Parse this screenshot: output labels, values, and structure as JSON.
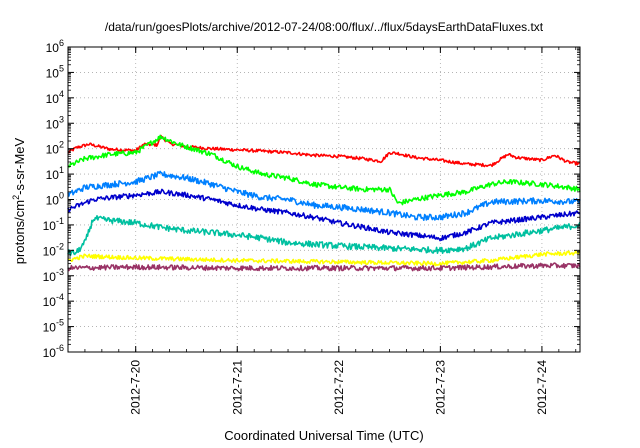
{
  "chart_data": {
    "type": "line",
    "title": "/data/run/goesPlots/archive/2012-07-24/08:00/flux/../flux/5daysEarthDataFluxes.txt",
    "xlabel": "Coordinated Universal Time (UTC)",
    "ylabel": "protons/cm2-s-sr-MeV",
    "ylabel_parts": {
      "base": "protons/cm",
      "sup": "2",
      "rest": "-s-sr-MeV"
    },
    "yscale": "log",
    "ylim": [
      1e-06,
      1000000.0
    ],
    "y_ticks": [
      {
        "base": "10",
        "exp": "-6"
      },
      {
        "base": "10",
        "exp": "-5"
      },
      {
        "base": "10",
        "exp": "-4"
      },
      {
        "base": "10",
        "exp": "-3"
      },
      {
        "base": "10",
        "exp": "-2"
      },
      {
        "base": "10",
        "exp": "-1"
      },
      {
        "base": "10",
        "exp": "0"
      },
      {
        "base": "10",
        "exp": "1"
      },
      {
        "base": "10",
        "exp": "2"
      },
      {
        "base": "10",
        "exp": "3"
      },
      {
        "base": "10",
        "exp": "4"
      },
      {
        "base": "10",
        "exp": "5"
      },
      {
        "base": "10",
        "exp": "6"
      }
    ],
    "xlim": [
      "2012-07-19 08:00",
      "2012-07-24 09:00"
    ],
    "x_ticks": [
      "2012-7-20",
      "2012-7-21",
      "2012-7-22",
      "2012-7-23",
      "2012-7-24"
    ],
    "grid": true,
    "series": [
      {
        "color": "#ff0000",
        "points": [
          [
            "2012-07-19 08:00",
            70
          ],
          [
            "2012-07-19 10:00",
            110
          ],
          [
            "2012-07-19 13:00",
            150
          ],
          [
            "2012-07-19 18:00",
            95
          ],
          [
            "2012-07-20 00:00",
            85
          ],
          [
            "2012-07-20 02:00",
            150
          ],
          [
            "2012-07-20 05:00",
            140
          ],
          [
            "2012-07-20 06:00",
            300
          ],
          [
            "2012-07-20 08:00",
            160
          ],
          [
            "2012-07-20 12:00",
            120
          ],
          [
            "2012-07-20 18:00",
            100
          ],
          [
            "2012-07-21 00:00",
            90
          ],
          [
            "2012-07-21 06:00",
            80
          ],
          [
            "2012-07-21 12:00",
            70
          ],
          [
            "2012-07-21 18:00",
            55
          ],
          [
            "2012-07-22 00:00",
            50
          ],
          [
            "2012-07-22 06:00",
            40
          ],
          [
            "2012-07-22 10:00",
            32
          ],
          [
            "2012-07-22 12:00",
            70
          ],
          [
            "2012-07-22 14:00",
            65
          ],
          [
            "2012-07-22 18:00",
            45
          ],
          [
            "2012-07-23 00:00",
            35
          ],
          [
            "2012-07-23 06:00",
            25
          ],
          [
            "2012-07-23 12:00",
            22
          ],
          [
            "2012-07-23 16:00",
            60
          ],
          [
            "2012-07-23 18:00",
            45
          ],
          [
            "2012-07-24 00:00",
            35
          ],
          [
            "2012-07-24 03:00",
            55
          ],
          [
            "2012-07-24 06:00",
            30
          ],
          [
            "2012-07-24 09:00",
            25
          ]
        ]
      },
      {
        "color": "#00ff00",
        "points": [
          [
            "2012-07-19 08:00",
            20
          ],
          [
            "2012-07-19 12:00",
            40
          ],
          [
            "2012-07-19 18:00",
            60
          ],
          [
            "2012-07-20 00:00",
            70
          ],
          [
            "2012-07-20 06:00",
            300
          ],
          [
            "2012-07-20 10:00",
            150
          ],
          [
            "2012-07-20 18:00",
            60
          ],
          [
            "2012-07-21 00:00",
            20
          ],
          [
            "2012-07-21 06:00",
            10
          ],
          [
            "2012-07-21 12:00",
            7
          ],
          [
            "2012-07-21 18:00",
            4
          ],
          [
            "2012-07-22 00:00",
            3
          ],
          [
            "2012-07-22 06:00",
            2.5
          ],
          [
            "2012-07-22 12:00",
            2.5
          ],
          [
            "2012-07-22 14:00",
            0.7
          ],
          [
            "2012-07-22 18:00",
            1.0
          ],
          [
            "2012-07-23 00:00",
            1.5
          ],
          [
            "2012-07-23 06:00",
            2
          ],
          [
            "2012-07-23 12:00",
            4
          ],
          [
            "2012-07-23 16:00",
            5
          ],
          [
            "2012-07-24 00:00",
            4
          ],
          [
            "2012-07-24 06:00",
            3
          ],
          [
            "2012-07-24 09:00",
            2.5
          ]
        ]
      },
      {
        "color": "#0080ff",
        "points": [
          [
            "2012-07-19 08:00",
            1.5
          ],
          [
            "2012-07-19 12:00",
            3
          ],
          [
            "2012-07-20 00:00",
            5
          ],
          [
            "2012-07-20 06:00",
            10
          ],
          [
            "2012-07-20 12:00",
            7
          ],
          [
            "2012-07-20 18:00",
            4
          ],
          [
            "2012-07-21 00:00",
            2
          ],
          [
            "2012-07-21 06:00",
            1.2
          ],
          [
            "2012-07-21 12:00",
            1.0
          ],
          [
            "2012-07-21 18:00",
            0.6
          ],
          [
            "2012-07-22 00:00",
            0.5
          ],
          [
            "2012-07-22 06:00",
            0.4
          ],
          [
            "2012-07-22 12:00",
            0.3
          ],
          [
            "2012-07-22 18:00",
            0.2
          ],
          [
            "2012-07-23 00:00",
            0.2
          ],
          [
            "2012-07-23 06:00",
            0.3
          ],
          [
            "2012-07-23 12:00",
            0.8
          ],
          [
            "2012-07-24 00:00",
            0.9
          ],
          [
            "2012-07-24 09:00",
            0.8
          ]
        ]
      },
      {
        "color": "#0000cc",
        "points": [
          [
            "2012-07-19 08:00",
            0.4
          ],
          [
            "2012-07-19 14:00",
            1.0
          ],
          [
            "2012-07-20 00:00",
            1.5
          ],
          [
            "2012-07-20 06:00",
            2
          ],
          [
            "2012-07-20 12:00",
            1.5
          ],
          [
            "2012-07-20 18:00",
            1.0
          ],
          [
            "2012-07-21 00:00",
            0.6
          ],
          [
            "2012-07-21 06:00",
            0.4
          ],
          [
            "2012-07-21 12:00",
            0.3
          ],
          [
            "2012-07-21 18:00",
            0.2
          ],
          [
            "2012-07-22 00:00",
            0.12
          ],
          [
            "2012-07-22 06:00",
            0.08
          ],
          [
            "2012-07-22 12:00",
            0.05
          ],
          [
            "2012-07-22 18:00",
            0.04
          ],
          [
            "2012-07-23 00:00",
            0.03
          ],
          [
            "2012-07-23 06:00",
            0.05
          ],
          [
            "2012-07-23 12:00",
            0.12
          ],
          [
            "2012-07-24 00:00",
            0.2
          ],
          [
            "2012-07-24 09:00",
            0.3
          ]
        ]
      },
      {
        "color": "#00c0a0",
        "points": [
          [
            "2012-07-19 08:00",
            0.008
          ],
          [
            "2012-07-19 10:00",
            0.008
          ],
          [
            "2012-07-19 12:00",
            0.02
          ],
          [
            "2012-07-19 14:00",
            0.18
          ],
          [
            "2012-07-19 18:00",
            0.15
          ],
          [
            "2012-07-20 00:00",
            0.12
          ],
          [
            "2012-07-20 06:00",
            0.08
          ],
          [
            "2012-07-20 12:00",
            0.06
          ],
          [
            "2012-07-20 18:00",
            0.05
          ],
          [
            "2012-07-21 00:00",
            0.04
          ],
          [
            "2012-07-21 06:00",
            0.03
          ],
          [
            "2012-07-21 12:00",
            0.02
          ],
          [
            "2012-07-22 00:00",
            0.015
          ],
          [
            "2012-07-22 12:00",
            0.012
          ],
          [
            "2012-07-23 00:00",
            0.01
          ],
          [
            "2012-07-23 06:00",
            0.012
          ],
          [
            "2012-07-23 12:00",
            0.03
          ],
          [
            "2012-07-24 00:00",
            0.06
          ],
          [
            "2012-07-24 09:00",
            0.1
          ]
        ]
      },
      {
        "color": "#ffff00",
        "points": [
          [
            "2012-07-19 08:00",
            0.004
          ],
          [
            "2012-07-19 12:00",
            0.006
          ],
          [
            "2012-07-20 00:00",
            0.005
          ],
          [
            "2012-07-21 00:00",
            0.004
          ],
          [
            "2012-07-22 00:00",
            0.0035
          ],
          [
            "2012-07-23 00:00",
            0.003
          ],
          [
            "2012-07-23 12:00",
            0.004
          ],
          [
            "2012-07-24 00:00",
            0.007
          ],
          [
            "2012-07-24 09:00",
            0.008
          ]
        ]
      },
      {
        "color": "#993366",
        "points": [
          [
            "2012-07-19 08:00",
            0.002
          ],
          [
            "2012-07-20 00:00",
            0.0022
          ],
          [
            "2012-07-21 00:00",
            0.002
          ],
          [
            "2012-07-22 00:00",
            0.002
          ],
          [
            "2012-07-23 00:00",
            0.002
          ],
          [
            "2012-07-24 00:00",
            0.0025
          ],
          [
            "2012-07-24 09:00",
            0.0025
          ]
        ]
      }
    ]
  }
}
